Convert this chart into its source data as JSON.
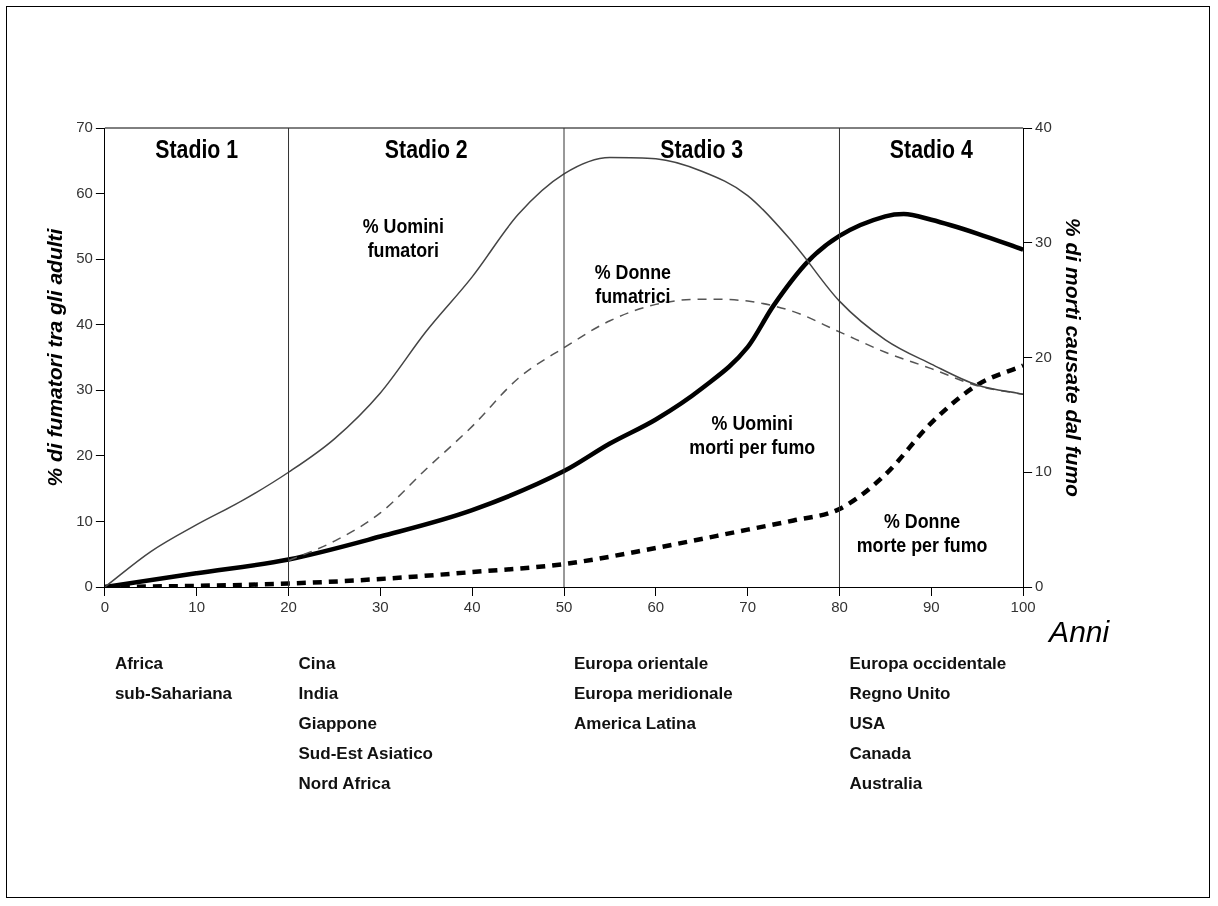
{
  "chart_data": {
    "type": "line",
    "xlabel": "Anni",
    "ylabel": "% di fumatori tra gli adulti",
    "y2label": "% di morti causate dal fumo",
    "xlim": [
      0,
      100
    ],
    "xticks": [
      0,
      10,
      20,
      30,
      40,
      50,
      60,
      70,
      80,
      90,
      100
    ],
    "ylim": [
      0,
      70
    ],
    "yticks": [
      0,
      10,
      20,
      30,
      40,
      50,
      60,
      70
    ],
    "y2lim": [
      0,
      40
    ],
    "y2ticks": [
      0,
      10,
      20,
      30,
      40
    ],
    "grid": false,
    "legend": false,
    "marker": "none",
    "series": [
      {
        "name": "% Uomini fumatori",
        "color": "#444444",
        "line_style": "solid",
        "x": [
          0,
          5,
          10,
          15,
          20,
          25,
          30,
          35,
          40,
          45,
          50,
          55,
          60,
          65,
          70,
          75,
          80,
          85,
          90,
          95,
          100
        ],
        "values": [
          0,
          5.4,
          9.5,
          13.2,
          17.5,
          22.6,
          29.6,
          39,
          47.3,
          56.8,
          63,
          65.5,
          65.3,
          63.4,
          59.7,
          52.4,
          43.6,
          37.7,
          34,
          30.8,
          29.4
        ]
      },
      {
        "name": "% Donne fumatrici",
        "color": "#555555",
        "line_style": "dashed",
        "x": [
          20,
          25,
          30,
          35,
          40,
          45,
          50,
          55,
          60,
          65,
          70,
          75,
          80,
          85,
          90,
          95,
          100
        ],
        "values": [
          4,
          7,
          11.3,
          18,
          24.5,
          31.8,
          36.5,
          40.6,
          43.1,
          43.9,
          43.6,
          42,
          38.9,
          35.8,
          33.3,
          30.7,
          29.4
        ]
      },
      {
        "name": "% Uomini morti per fumo",
        "color": "#000000",
        "line_style": "solid",
        "axis": "y2",
        "x": [
          0,
          10,
          20,
          30,
          40,
          50,
          55,
          60,
          65,
          70,
          72.8,
          76.6,
          80,
          85,
          87,
          90,
          95,
          100
        ],
        "values": [
          0,
          1.2,
          2.4,
          4.4,
          6.7,
          10.1,
          12.5,
          14.6,
          17.3,
          20.9,
          24.5,
          28.4,
          30.6,
          32.3,
          32.5,
          32,
          30.8,
          29.4
        ]
      },
      {
        "name": "% Donne morte per fumo",
        "color": "#000000",
        "line_style": "dashed",
        "axis": "y2",
        "x": [
          0,
          10,
          20,
          30,
          40,
          50,
          60,
          70,
          75,
          80,
          85,
          90,
          95,
          100
        ],
        "values": [
          0,
          0.1,
          0.3,
          0.7,
          1.3,
          2.0,
          3.4,
          5.0,
          5.8,
          6.8,
          9.8,
          14.3,
          17.6,
          19.3
        ]
      }
    ],
    "ref_lines": [
      {
        "axis": "x",
        "value": 20
      },
      {
        "axis": "x",
        "value": 50
      },
      {
        "axis": "x",
        "value": 80
      }
    ],
    "annotations": [
      "Stadio 1",
      "Stadio 2",
      "Stadio 3",
      "Stadio 4",
      "Africa\nsub-Sahariana",
      "Cina\nIndia\nGiappone\nSud-Est Asiatico\nNord Africa",
      "Europa orientale\nEuropa meridionale\nAmerica Latina",
      "Europa occidentale\nRegno Unito\nUSA\nCanada\nAustralia"
    ]
  }
}
